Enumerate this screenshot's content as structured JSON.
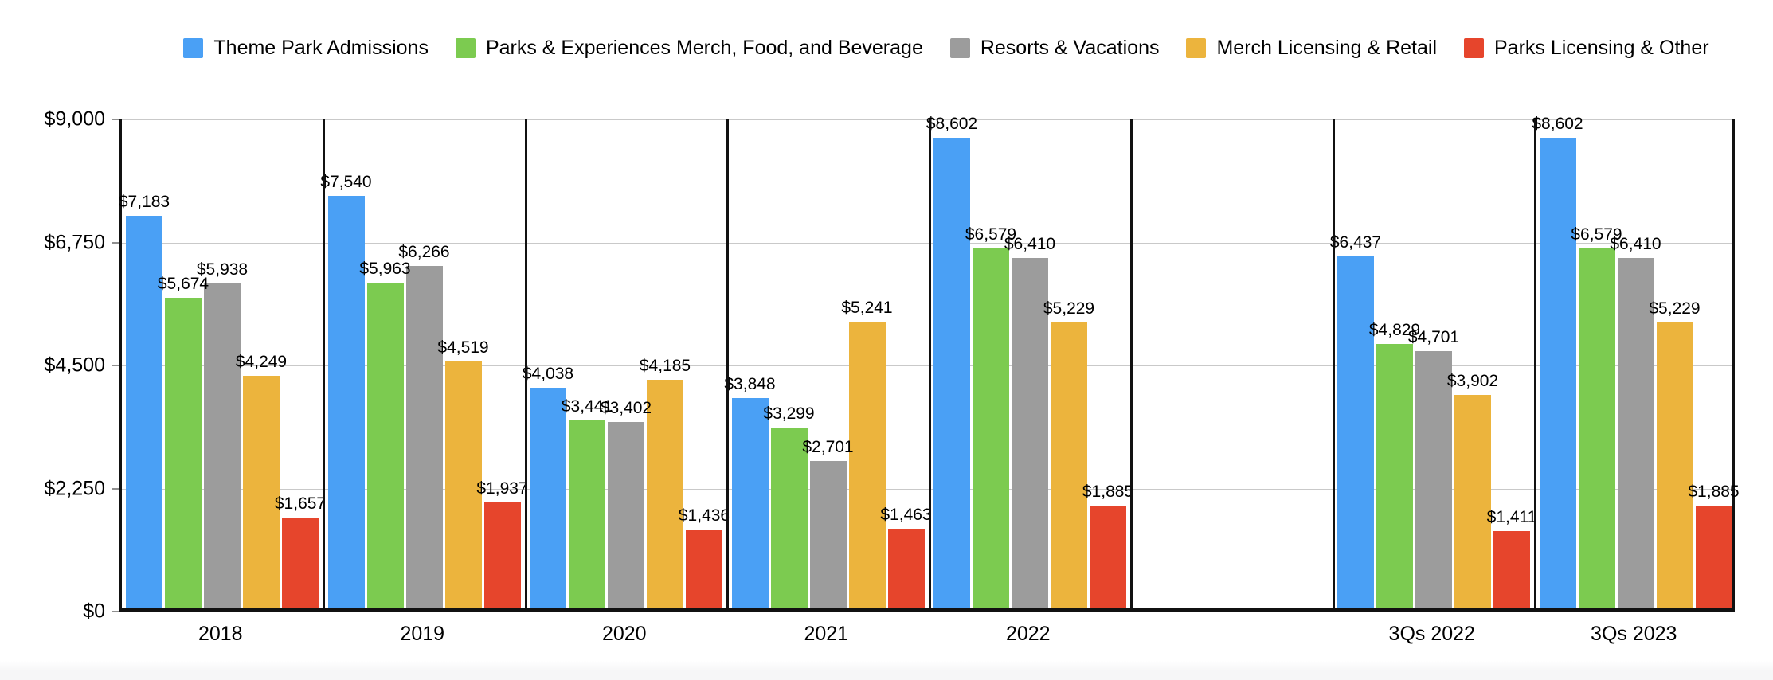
{
  "page": {
    "background_color": "#ffffff",
    "axis_color": "#111111",
    "gridline_color": "#c9c9c9",
    "tick_color": "#8f8f8f",
    "text_color": "#000000"
  },
  "chart_data": {
    "type": "bar",
    "title": "",
    "legend_position": "top",
    "grid": "horizontal",
    "ylim": [
      0,
      9000
    ],
    "ytick_values": [
      9000,
      6750,
      4500,
      2250,
      0
    ],
    "ytick_labels": [
      "$9,000",
      "$6,750",
      "$4,500",
      "$2,250",
      "$0"
    ],
    "value_label_prefix": "$",
    "categories": [
      "2018",
      "2019",
      "2020",
      "2021",
      "2022",
      "",
      "3Qs 2022",
      "3Qs 2023"
    ],
    "series": [
      {
        "name": "Theme Park Admissions",
        "color": "#4AA0F5",
        "values": [
          7183,
          7540,
          4038,
          3848,
          8602,
          null,
          6437,
          8602
        ]
      },
      {
        "name": "Parks & Experiences Merch, Food, and Beverage",
        "color": "#7CCB50",
        "values": [
          5674,
          5963,
          3441,
          3299,
          6579,
          null,
          4829,
          6579
        ]
      },
      {
        "name": "Resorts & Vacations",
        "color": "#9C9C9C",
        "values": [
          5938,
          6266,
          3402,
          2701,
          6410,
          null,
          4701,
          6410
        ]
      },
      {
        "name": "Merch Licensing & Retail",
        "color": "#ECB43D",
        "values": [
          4249,
          4519,
          4185,
          5241,
          5229,
          null,
          3902,
          5229
        ]
      },
      {
        "name": "Parks Licensing & Other",
        "color": "#E6452C",
        "values": [
          1657,
          1937,
          1436,
          1463,
          1885,
          null,
          1411,
          1885
        ]
      }
    ]
  }
}
